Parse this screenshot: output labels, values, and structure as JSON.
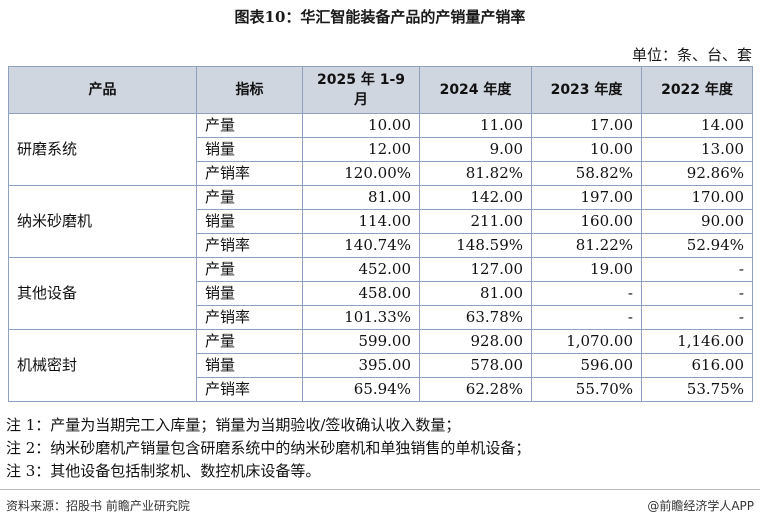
{
  "title": "图表10：华汇智能装备产品的产销量产销率",
  "unit": "单位：条、台、套",
  "columns": [
    "产品",
    "指标",
    "2025 年 1-9 月",
    "2024 年度",
    "2023 年度",
    "2022 年度"
  ],
  "groups": [
    {
      "product": "研磨系统",
      "rows": [
        {
          "metric": "产量",
          "values": [
            "10.00",
            "11.00",
            "17.00",
            "14.00"
          ]
        },
        {
          "metric": "销量",
          "values": [
            "12.00",
            "9.00",
            "10.00",
            "13.00"
          ]
        },
        {
          "metric": "产销率",
          "values": [
            "120.00%",
            "81.82%",
            "58.82%",
            "92.86%"
          ]
        }
      ]
    },
    {
      "product": "纳米砂磨机",
      "rows": [
        {
          "metric": "产量",
          "values": [
            "81.00",
            "142.00",
            "197.00",
            "170.00"
          ]
        },
        {
          "metric": "销量",
          "values": [
            "114.00",
            "211.00",
            "160.00",
            "90.00"
          ]
        },
        {
          "metric": "产销率",
          "values": [
            "140.74%",
            "148.59%",
            "81.22%",
            "52.94%"
          ]
        }
      ]
    },
    {
      "product": "其他设备",
      "rows": [
        {
          "metric": "产量",
          "values": [
            "452.00",
            "127.00",
            "19.00",
            "-"
          ]
        },
        {
          "metric": "销量",
          "values": [
            "458.00",
            "81.00",
            "-",
            "-"
          ]
        },
        {
          "metric": "产销率",
          "values": [
            "101.33%",
            "63.78%",
            "-",
            "-"
          ]
        }
      ]
    },
    {
      "product": "机械密封",
      "rows": [
        {
          "metric": "产量",
          "values": [
            "599.00",
            "928.00",
            "1,070.00",
            "1,146.00"
          ]
        },
        {
          "metric": "销量",
          "values": [
            "395.00",
            "578.00",
            "596.00",
            "616.00"
          ]
        },
        {
          "metric": "产销率",
          "values": [
            "65.94%",
            "62.28%",
            "55.70%",
            "53.75%"
          ]
        }
      ]
    }
  ],
  "notes": [
    "注 1：产量为当期完工入库量；销量为当期验收/签收确认收入数量；",
    "注 2：纳米砂磨机产销量包含研磨系统中的纳米砂磨机和单独销售的单机设备；",
    "注 3：其他设备包括制浆机、数控机床设备等。"
  ],
  "footer": {
    "source": "资料来源：招股书 前瞻产业研究院",
    "brand": "@前瞻经济学人APP"
  }
}
